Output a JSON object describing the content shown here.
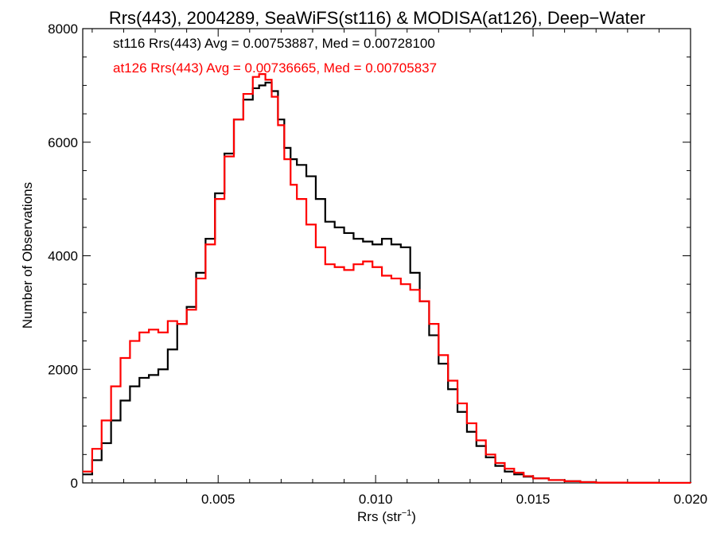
{
  "chart_data": {
    "type": "line",
    "title": "Rrs(443), 2004289, SeaWiFS(st116) & MODISA(at126), Deep−Water",
    "xlabel": "Rrs (str",
    "xlabel_sup": "−1",
    "xlabel_end": ")",
    "ylabel": "Number of Observations",
    "xlim": [
      0.0007,
      0.02
    ],
    "ylim": [
      0,
      8000
    ],
    "xticks": [
      0.005,
      0.01,
      0.015,
      0.02
    ],
    "xtick_labels": [
      "0.005",
      "0.010",
      "0.015",
      "0.020"
    ],
    "yticks": [
      0,
      2000,
      4000,
      6000,
      8000
    ],
    "ytick_labels": [
      "0",
      "2000",
      "4000",
      "6000",
      "8000"
    ],
    "grid": false,
    "legend_entries": [
      "st116 Rrs(443) Avg = 0.00753887, Med = 0.00728100",
      "at126 Rrs(443) Avg = 0.00736665, Med = 0.00705837"
    ],
    "series": [
      {
        "color": "#000000",
        "x": [
          0.0007,
          0.001,
          0.0013,
          0.0016,
          0.0019,
          0.0022,
          0.0025,
          0.0028,
          0.0031,
          0.0034,
          0.0037,
          0.004,
          0.0043,
          0.0046,
          0.0049,
          0.0052,
          0.0055,
          0.0058,
          0.0061,
          0.0063,
          0.0065,
          0.0067,
          0.0069,
          0.0071,
          0.0073,
          0.0075,
          0.0078,
          0.0081,
          0.0084,
          0.0087,
          0.009,
          0.0093,
          0.0096,
          0.0099,
          0.0102,
          0.0105,
          0.0108,
          0.0111,
          0.0114,
          0.0117,
          0.012,
          0.0123,
          0.0126,
          0.0129,
          0.0132,
          0.0135,
          0.0138,
          0.0141,
          0.0144,
          0.0147,
          0.015,
          0.0155,
          0.016,
          0.0165,
          0.017,
          0.018,
          0.019,
          0.02
        ],
        "y": [
          150,
          400,
          700,
          1100,
          1450,
          1700,
          1850,
          1900,
          2000,
          2350,
          2800,
          3100,
          3700,
          4300,
          5100,
          5800,
          6400,
          6750,
          6950,
          7000,
          7050,
          6900,
          6400,
          5900,
          5700,
          5600,
          5400,
          5000,
          4600,
          4500,
          4400,
          4300,
          4250,
          4200,
          4300,
          4200,
          4150,
          3700,
          3200,
          2600,
          2100,
          1650,
          1250,
          900,
          650,
          450,
          300,
          200,
          150,
          110,
          80,
          50,
          30,
          15,
          5,
          2,
          1,
          0
        ]
      },
      {
        "color": "#ff0000",
        "x": [
          0.0007,
          0.001,
          0.0013,
          0.0016,
          0.0019,
          0.0022,
          0.0025,
          0.0028,
          0.0031,
          0.0034,
          0.0037,
          0.004,
          0.0043,
          0.0046,
          0.0049,
          0.0052,
          0.0055,
          0.0058,
          0.0061,
          0.0063,
          0.0065,
          0.0067,
          0.0069,
          0.0071,
          0.0073,
          0.0075,
          0.0078,
          0.0081,
          0.0084,
          0.0087,
          0.009,
          0.0093,
          0.0096,
          0.0099,
          0.0102,
          0.0105,
          0.0108,
          0.0111,
          0.0114,
          0.0117,
          0.012,
          0.0123,
          0.0126,
          0.0129,
          0.0132,
          0.0135,
          0.0138,
          0.0141,
          0.0144,
          0.0147,
          0.015,
          0.0155,
          0.016,
          0.0165,
          0.017,
          0.018,
          0.019,
          0.02
        ],
        "y": [
          200,
          600,
          1100,
          1700,
          2200,
          2500,
          2650,
          2700,
          2650,
          2850,
          2800,
          3050,
          3600,
          4200,
          5000,
          5750,
          6400,
          6850,
          7150,
          7200,
          7100,
          6800,
          6300,
          5700,
          5250,
          5000,
          4550,
          4150,
          3850,
          3800,
          3750,
          3850,
          3900,
          3800,
          3650,
          3600,
          3500,
          3400,
          3200,
          2800,
          2250,
          1800,
          1400,
          1050,
          750,
          500,
          350,
          250,
          180,
          120,
          80,
          50,
          30,
          15,
          5,
          2,
          1,
          0
        ]
      }
    ]
  }
}
